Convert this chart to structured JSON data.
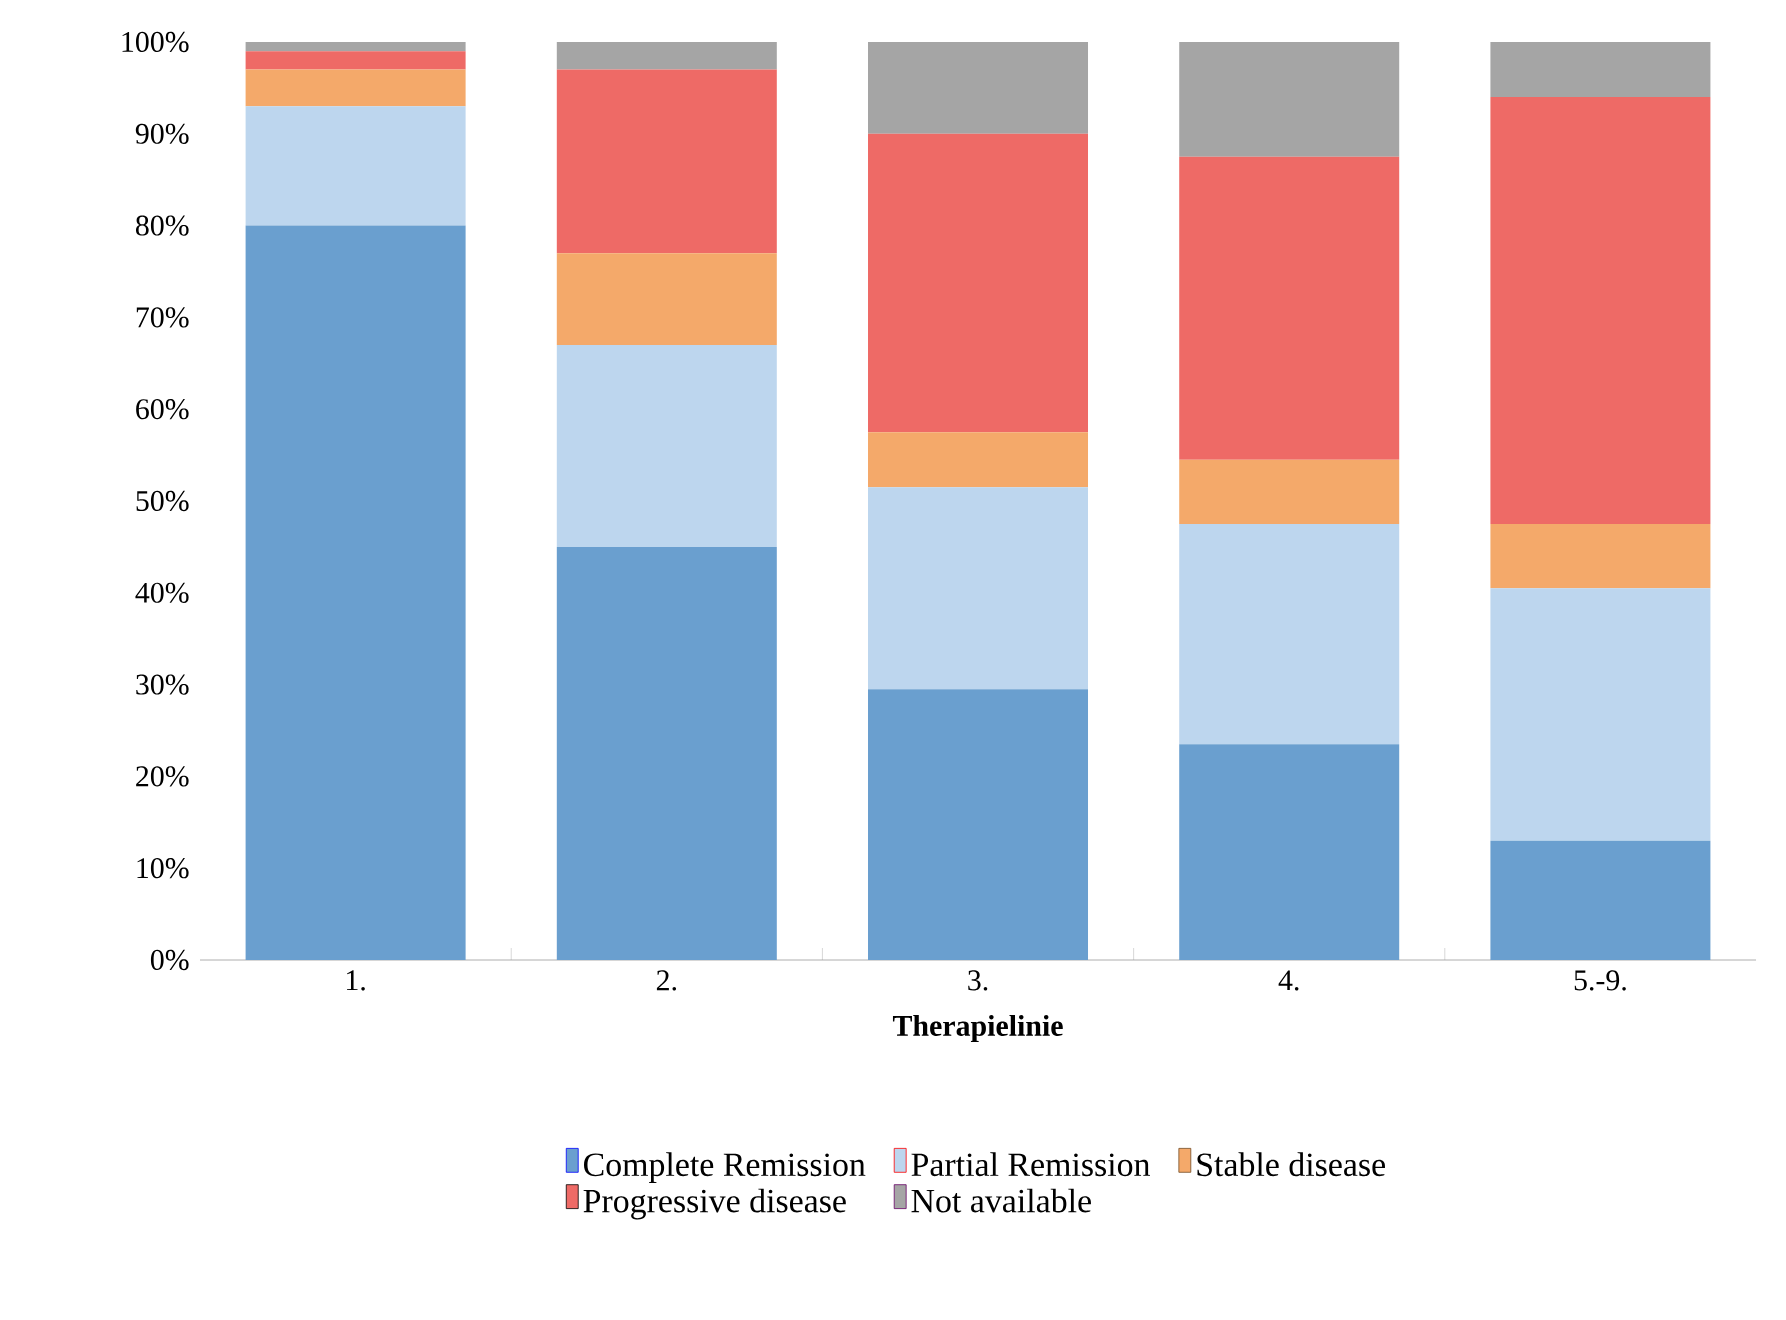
{
  "chart_data": {
    "type": "bar",
    "stacked": true,
    "xlabel": "Therapielinie",
    "categories": [
      "1.",
      "2.",
      "3.",
      "4.",
      "5.-9."
    ],
    "series": [
      {
        "name": "Complete Remission",
        "color": "#6a9fcf",
        "values": [
          80,
          45,
          29.5,
          23.5,
          13
        ]
      },
      {
        "name": "Partial Remission",
        "color": "#bdd6ee",
        "values": [
          13,
          22,
          22,
          24,
          27.5
        ]
      },
      {
        "name": "Stable disease",
        "color": "#f4a96a",
        "values": [
          4,
          10,
          6,
          7,
          7
        ]
      },
      {
        "name": "Progressive disease",
        "color": "#ee6a66",
        "values": [
          2,
          20,
          32.5,
          33,
          46.5
        ]
      },
      {
        "name": "Not available",
        "color": "#a5a5a5",
        "values": [
          1,
          3,
          10,
          12.5,
          6
        ]
      }
    ],
    "ylim": [
      0,
      100
    ],
    "yticks": [
      {
        "value": 0,
        "label": "0%"
      },
      {
        "value": 10,
        "label": "10%"
      },
      {
        "value": 20,
        "label": "20%"
      },
      {
        "value": 30,
        "label": "30%"
      },
      {
        "value": 40,
        "label": "40%"
      },
      {
        "value": 50,
        "label": "50%"
      },
      {
        "value": 60,
        "label": "60%"
      },
      {
        "value": 70,
        "label": "70%"
      },
      {
        "value": 80,
        "label": "80%"
      },
      {
        "value": 90,
        "label": "90%"
      },
      {
        "value": 100,
        "label": "100%"
      }
    ],
    "legend": "bottom"
  }
}
